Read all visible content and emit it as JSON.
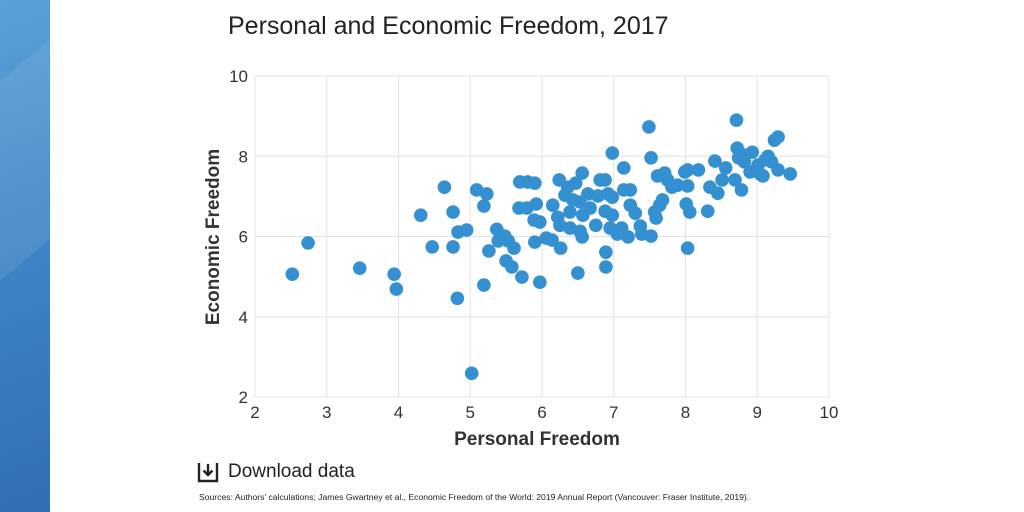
{
  "chart_data": {
    "type": "scatter",
    "title": "Personal and Economic Freedom, 2017",
    "xlabel": "Personal Freedom",
    "ylabel": "Economic Freedom",
    "xlim": [
      2,
      10
    ],
    "ylim": [
      2,
      10
    ],
    "xticks": [
      2,
      3,
      4,
      5,
      6,
      7,
      8,
      9,
      10
    ],
    "yticks": [
      2,
      4,
      6,
      8,
      10
    ],
    "grid": true,
    "color": "#3490d0",
    "points": [
      [
        2.52,
        5.06
      ],
      [
        2.74,
        5.84
      ],
      [
        3.46,
        5.21
      ],
      [
        3.94,
        5.06
      ],
      [
        3.97,
        4.69
      ],
      [
        4.31,
        6.53
      ],
      [
        4.47,
        5.74
      ],
      [
        4.64,
        7.23
      ],
      [
        4.76,
        6.61
      ],
      [
        4.76,
        5.74
      ],
      [
        4.83,
        6.11
      ],
      [
        4.82,
        4.46
      ],
      [
        4.95,
        6.16
      ],
      [
        5.02,
        2.59
      ],
      [
        5.09,
        7.16
      ],
      [
        5.23,
        7.06
      ],
      [
        5.19,
        6.76
      ],
      [
        5.26,
        5.64
      ],
      [
        5.19,
        4.79
      ],
      [
        5.37,
        6.18
      ],
      [
        5.39,
        5.89
      ],
      [
        5.48,
        6.01
      ],
      [
        5.53,
        5.89
      ],
      [
        5.5,
        5.39
      ],
      [
        5.58,
        5.24
      ],
      [
        5.61,
        5.71
      ],
      [
        5.69,
        7.36
      ],
      [
        5.72,
        4.99
      ],
      [
        5.68,
        6.71
      ],
      [
        5.79,
        6.71
      ],
      [
        5.8,
        7.36
      ],
      [
        5.9,
        7.33
      ],
      [
        5.92,
        6.81
      ],
      [
        5.89,
        6.41
      ],
      [
        5.9,
        5.86
      ],
      [
        5.97,
        4.86
      ],
      [
        5.97,
        6.36
      ],
      [
        6.06,
        5.96
      ],
      [
        6.14,
        5.91
      ],
      [
        6.15,
        6.78
      ],
      [
        6.24,
        7.41
      ],
      [
        6.22,
        6.48
      ],
      [
        6.25,
        6.28
      ],
      [
        6.26,
        5.71
      ],
      [
        6.32,
        7.03
      ],
      [
        6.36,
        7.23
      ],
      [
        6.39,
        6.61
      ],
      [
        6.39,
        6.21
      ],
      [
        6.43,
        6.91
      ],
      [
        6.47,
        7.33
      ],
      [
        6.53,
        6.86
      ],
      [
        6.53,
        6.13
      ],
      [
        6.5,
        5.09
      ],
      [
        6.57,
        6.53
      ],
      [
        6.56,
        5.99
      ],
      [
        6.56,
        7.58
      ],
      [
        6.64,
        7.06
      ],
      [
        6.67,
        6.71
      ],
      [
        6.78,
        7.01
      ],
      [
        6.81,
        7.41
      ],
      [
        6.75,
        6.28
      ],
      [
        6.88,
        7.41
      ],
      [
        6.88,
        6.63
      ],
      [
        6.92,
        7.06
      ],
      [
        6.89,
        5.61
      ],
      [
        6.89,
        5.24
      ],
      [
        6.95,
        6.21
      ],
      [
        6.98,
        8.08
      ],
      [
        6.98,
        6.98
      ],
      [
        6.98,
        6.53
      ],
      [
        7.05,
        6.06
      ],
      [
        7.11,
        6.21
      ],
      [
        7.14,
        7.71
      ],
      [
        7.14,
        7.16
      ],
      [
        7.2,
        5.99
      ],
      [
        7.23,
        7.16
      ],
      [
        7.23,
        6.78
      ],
      [
        7.3,
        6.58
      ],
      [
        7.37,
        6.26
      ],
      [
        7.39,
        6.06
      ],
      [
        7.49,
        8.73
      ],
      [
        7.52,
        7.96
      ],
      [
        7.52,
        6.01
      ],
      [
        7.57,
        6.61
      ],
      [
        7.59,
        6.46
      ],
      [
        7.61,
        7.51
      ],
      [
        7.64,
        6.78
      ],
      [
        7.68,
        6.91
      ],
      [
        7.71,
        7.58
      ],
      [
        7.75,
        7.41
      ],
      [
        7.81,
        7.23
      ],
      [
        7.89,
        7.28
      ],
      [
        7.99,
        7.61
      ],
      [
        8.03,
        7.66
      ],
      [
        8.01,
        6.81
      ],
      [
        8.06,
        6.61
      ],
      [
        8.03,
        5.71
      ],
      [
        8.03,
        7.26
      ],
      [
        8.18,
        7.66
      ],
      [
        8.31,
        6.63
      ],
      [
        8.34,
        7.23
      ],
      [
        8.41,
        7.88
      ],
      [
        8.45,
        7.08
      ],
      [
        8.51,
        7.41
      ],
      [
        8.56,
        7.71
      ],
      [
        8.69,
        7.41
      ],
      [
        8.71,
        8.9
      ],
      [
        8.72,
        8.2
      ],
      [
        8.78,
        7.16
      ],
      [
        8.82,
        7.86
      ],
      [
        8.82,
        8.03
      ],
      [
        8.93,
        8.1
      ],
      [
        8.9,
        7.61
      ],
      [
        9.04,
        7.56
      ],
      [
        9.15,
        8.0
      ],
      [
        9.24,
        8.4
      ],
      [
        9.29,
        8.48
      ],
      [
        9.2,
        7.86
      ],
      [
        9.29,
        7.66
      ],
      [
        9.46,
        7.56
      ],
      [
        9.08,
        7.51
      ],
      [
        9.11,
        7.91
      ],
      [
        8.74,
        7.96
      ],
      [
        9.01,
        7.78
      ]
    ]
  },
  "download_label": "Download data",
  "sources": "Sources: Authors' calculations; James Gwartney et al., Economic Freedom of the World: 2019 Annual Report (Vancouver: Fraser Institute, 2019)."
}
